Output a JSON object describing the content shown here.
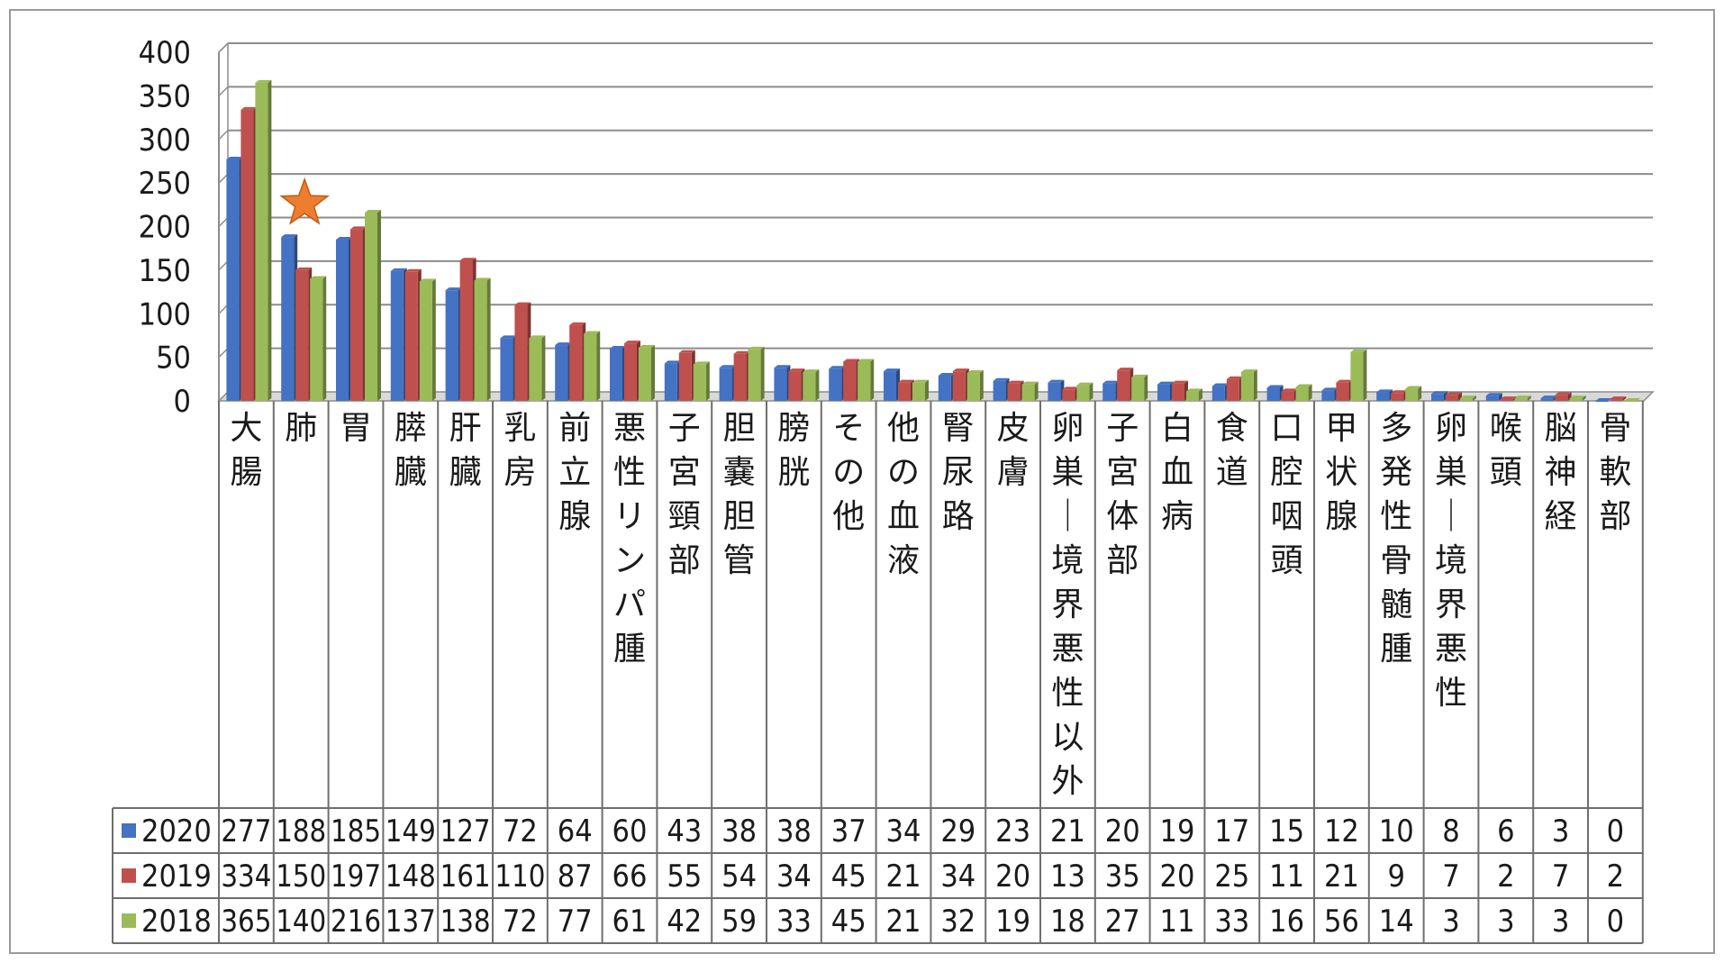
{
  "chart_data": {
    "type": "bar",
    "title": "",
    "xlabel": "",
    "ylabel": "",
    "ylim": [
      0,
      400
    ],
    "yticks": [
      "400",
      "350",
      "300",
      "250",
      "200",
      "150",
      "100",
      "50",
      "0"
    ],
    "grid": true,
    "annotation": "star-marker-on-肺",
    "categories": [
      "大腸",
      "肺",
      "胃",
      "膵臓",
      "肝臓",
      "乳房",
      "前立腺",
      "悪性リンパ腫",
      "子宮頸部",
      "胆嚢胆管",
      "膀胱",
      "その他",
      "他の血液",
      "腎尿路",
      "皮膚",
      "卵巣ー境界悪性以外",
      "子宮体部",
      "白血病",
      "食道",
      "口腔咽頭",
      "甲状腺",
      "多発性骨髄腫",
      "卵巣ー境界悪性",
      "喉頭",
      "脳神経",
      "骨軟部"
    ],
    "series": [
      {
        "name": "2020",
        "color": "#4472c4",
        "values": [
          277,
          188,
          185,
          149,
          127,
          72,
          64,
          60,
          43,
          38,
          38,
          37,
          34,
          29,
          23,
          21,
          20,
          19,
          17,
          15,
          12,
          10,
          8,
          6,
          3,
          0
        ]
      },
      {
        "name": "2019",
        "color": "#c0504d",
        "values": [
          334,
          150,
          197,
          148,
          161,
          110,
          87,
          66,
          55,
          54,
          34,
          45,
          21,
          34,
          20,
          13,
          35,
          20,
          25,
          11,
          21,
          9,
          7,
          2,
          7,
          2
        ]
      },
      {
        "name": "2018",
        "color": "#9bbb59",
        "values": [
          365,
          140,
          216,
          137,
          138,
          72,
          77,
          61,
          42,
          59,
          33,
          45,
          21,
          32,
          19,
          18,
          27,
          11,
          33,
          16,
          56,
          14,
          3,
          3,
          3,
          0
        ]
      }
    ],
    "legend_position": "data-table"
  }
}
